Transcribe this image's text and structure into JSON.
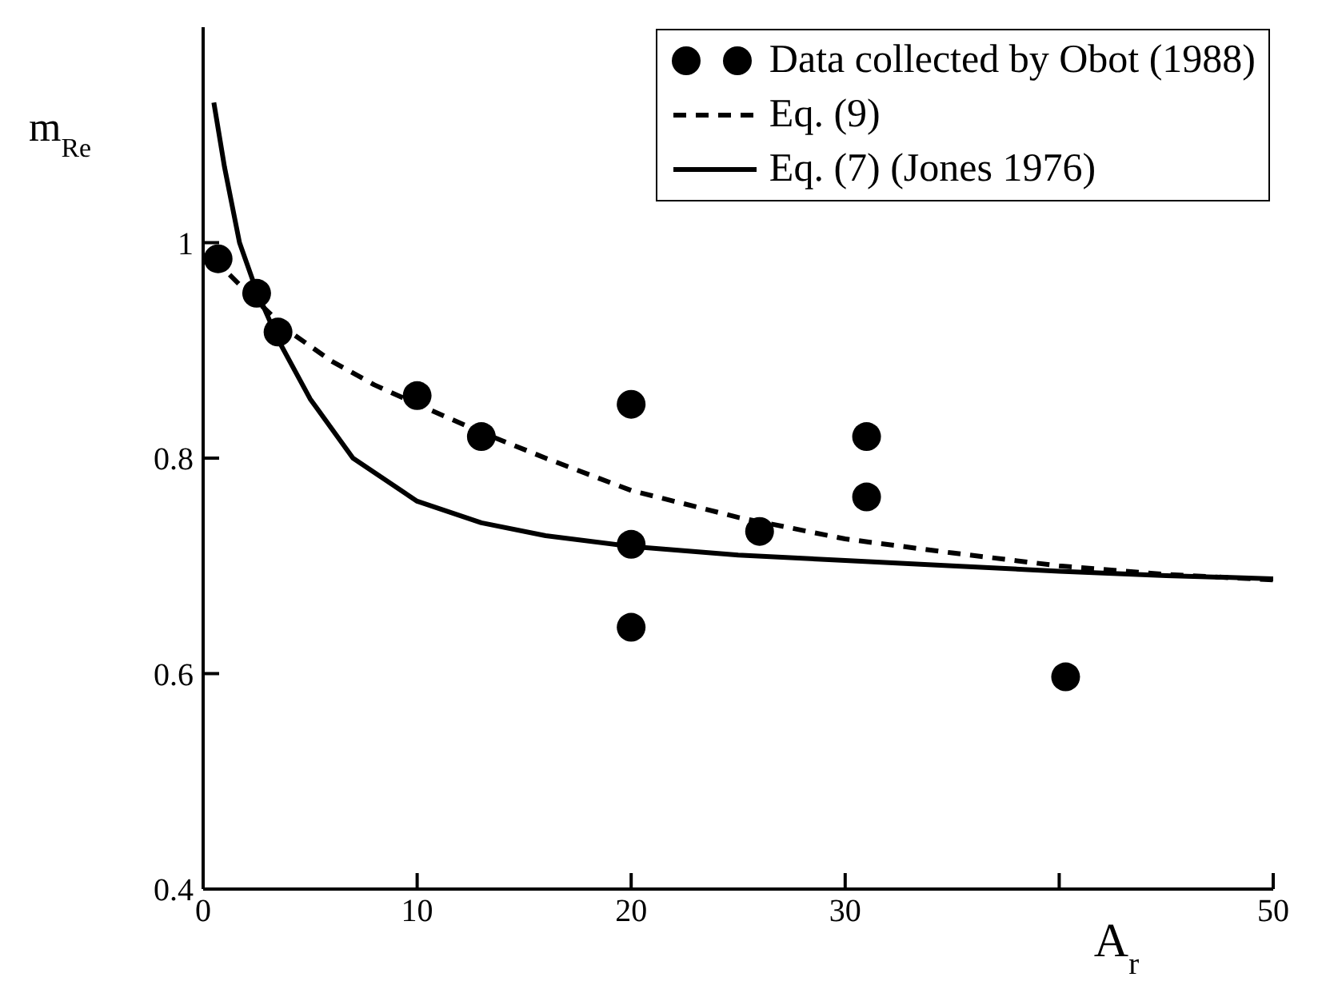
{
  "chart_data": {
    "type": "line",
    "xlabel": "A$_{r}$",
    "ylabel": "m$_{Re}$",
    "xlim": [
      0,
      50
    ],
    "xticks": [
      0,
      10,
      20,
      30,
      {
        "value": 40,
        "label": null
      },
      50
    ],
    "ylim": [
      0.4,
      1.2
    ],
    "yticks": [
      0.4,
      0.6,
      0.8,
      1
    ],
    "grid": false,
    "legend": "top right",
    "series": [
      {
        "name": "Data collected by Obot (1988)",
        "type": "scatter",
        "marker": "circle",
        "color": "#000000",
        "x": [
          0.7,
          2.5,
          3.5,
          10,
          13,
          20,
          20,
          20,
          26,
          31,
          31,
          40.3
        ],
        "values": [
          0.985,
          0.953,
          0.917,
          0.858,
          0.82,
          0.85,
          0.72,
          0.643,
          0.732,
          0.82,
          0.764,
          0.597
        ]
      },
      {
        "name": "Eq. (9)",
        "line_style": "dashed",
        "color": "#000000",
        "x": [
          0.5,
          2,
          4,
          6,
          8,
          10,
          13,
          16,
          20,
          25,
          30,
          35,
          40,
          45,
          50
        ],
        "values": [
          0.985,
          0.955,
          0.918,
          0.89,
          0.868,
          0.85,
          0.824,
          0.8,
          0.77,
          0.745,
          0.725,
          0.712,
          0.7,
          0.692,
          0.687
        ]
      },
      {
        "name": "Eq. (7) (Jones 1976)",
        "line_style": "solid",
        "color": "#000000",
        "x": [
          0.5,
          1,
          1.7,
          2.5,
          3.5,
          5,
          7,
          10,
          13,
          16,
          20,
          25,
          30,
          35,
          40,
          45,
          50
        ],
        "values": [
          1.13,
          1.07,
          1.0,
          0.955,
          0.91,
          0.855,
          0.8,
          0.76,
          0.74,
          0.728,
          0.718,
          0.71,
          0.705,
          0.7,
          0.695,
          0.691,
          0.688
        ]
      }
    ]
  }
}
